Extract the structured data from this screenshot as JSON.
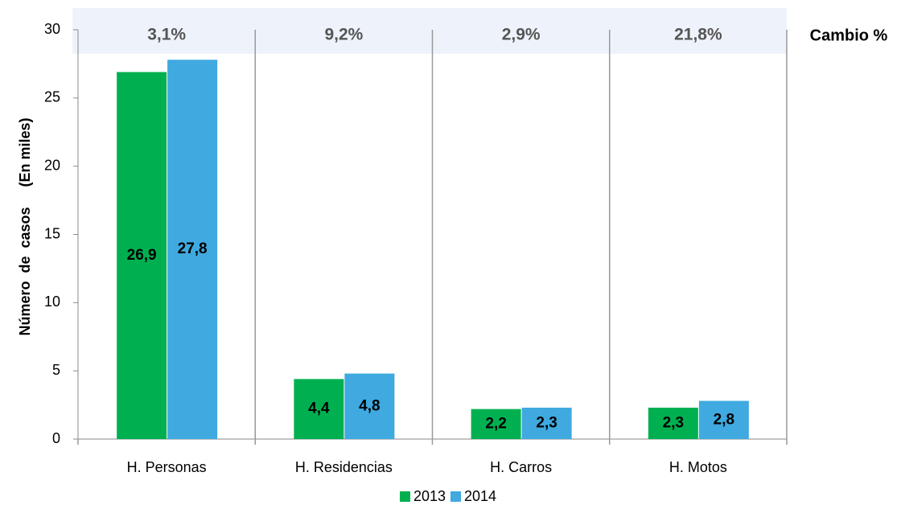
{
  "chart_data": {
    "type": "bar",
    "categories": [
      "H. Personas",
      "H. Residencias",
      "H. Carros",
      "H. Motos"
    ],
    "series": [
      {
        "name": "2013",
        "color": "#00b050",
        "values": [
          26.9,
          4.4,
          2.2,
          2.3
        ],
        "value_labels": [
          "26,9",
          "4,4",
          "2,2",
          "2,3"
        ]
      },
      {
        "name": "2014",
        "color": "#3fa9e0",
        "values": [
          27.8,
          4.8,
          2.3,
          2.8
        ],
        "value_labels": [
          "27,8",
          "4,8",
          "2,3",
          "2,8"
        ]
      }
    ],
    "change_labels": [
      "3,1%",
      "9,2%",
      "2,9%",
      "21,8%"
    ],
    "change_title": "Cambio %",
    "ylabel": "Número  de  casos     (En miles)",
    "ylim": [
      0,
      30
    ],
    "yticks": [
      0,
      5,
      10,
      15,
      20,
      25,
      30
    ],
    "legend": "bottom"
  }
}
